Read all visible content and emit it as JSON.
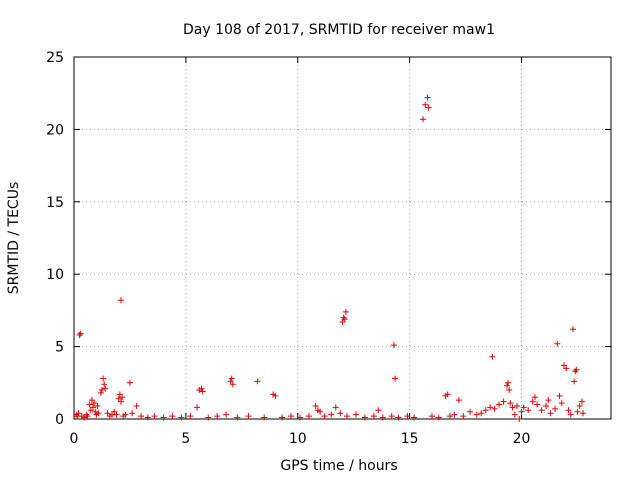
{
  "chart_data": {
    "type": "scatter",
    "title": "Day 108 of 2017, SRMTID for receiver maw1",
    "xlabel": "GPS time / hours",
    "ylabel": "SRMTID / TECUs",
    "xlim": [
      0,
      24
    ],
    "ylim": [
      0,
      25
    ],
    "xticks": [
      0,
      5,
      10,
      15,
      20
    ],
    "yticks": [
      0,
      5,
      10,
      15,
      20,
      25
    ],
    "grid": true,
    "marker": "+",
    "color": "#e00000",
    "series": [
      {
        "name": "SRMTID",
        "points": [
          [
            0.1,
            0.3
          ],
          [
            0.15,
            0.2
          ],
          [
            0.2,
            0.4
          ],
          [
            0.25,
            5.8
          ],
          [
            0.3,
            5.9
          ],
          [
            0.35,
            0.2
          ],
          [
            0.45,
            0.1
          ],
          [
            0.55,
            0.3
          ],
          [
            0.6,
            0.2
          ],
          [
            0.7,
            1.0
          ],
          [
            0.75,
            0.6
          ],
          [
            0.8,
            1.3
          ],
          [
            0.85,
            0.8
          ],
          [
            0.9,
            1.1
          ],
          [
            0.95,
            0.5
          ],
          [
            1.0,
            0.3
          ],
          [
            1.05,
            0.9
          ],
          [
            1.1,
            0.4
          ],
          [
            1.2,
            1.8
          ],
          [
            1.25,
            2.0
          ],
          [
            1.3,
            2.8
          ],
          [
            1.35,
            2.4
          ],
          [
            1.4,
            2.1
          ],
          [
            1.5,
            0.4
          ],
          [
            1.6,
            0.2
          ],
          [
            1.7,
            0.3
          ],
          [
            1.8,
            0.5
          ],
          [
            1.9,
            0.3
          ],
          [
            2.0,
            1.4
          ],
          [
            2.05,
            1.7
          ],
          [
            2.1,
            1.2
          ],
          [
            2.15,
            1.5
          ],
          [
            2.1,
            8.2
          ],
          [
            2.2,
            0.2
          ],
          [
            2.3,
            0.3
          ],
          [
            2.5,
            2.5
          ],
          [
            2.6,
            0.4
          ],
          [
            2.8,
            0.9
          ],
          [
            3.0,
            0.2
          ],
          [
            3.3,
            0.1
          ],
          [
            3.6,
            0.2
          ],
          [
            4.0,
            0.1
          ],
          [
            4.4,
            0.2
          ],
          [
            4.8,
            0.1
          ],
          [
            5.2,
            0.2
          ],
          [
            5.5,
            0.8
          ],
          [
            5.6,
            2.0
          ],
          [
            5.7,
            2.1
          ],
          [
            5.75,
            1.9
          ],
          [
            6.0,
            0.1
          ],
          [
            6.4,
            0.2
          ],
          [
            6.8,
            0.3
          ],
          [
            7.0,
            2.6
          ],
          [
            7.05,
            2.8
          ],
          [
            7.1,
            2.4
          ],
          [
            7.3,
            0.1
          ],
          [
            7.8,
            0.2
          ],
          [
            8.2,
            2.6
          ],
          [
            8.5,
            0.1
          ],
          [
            8.9,
            1.7
          ],
          [
            9.0,
            1.6
          ],
          [
            9.3,
            0.1
          ],
          [
            9.7,
            0.2
          ],
          [
            10.1,
            0.1
          ],
          [
            10.5,
            0.2
          ],
          [
            10.8,
            0.9
          ],
          [
            10.9,
            0.6
          ],
          [
            11.0,
            0.5
          ],
          [
            11.2,
            0.2
          ],
          [
            11.5,
            0.3
          ],
          [
            11.7,
            0.8
          ],
          [
            11.9,
            0.4
          ],
          [
            12.0,
            6.7
          ],
          [
            12.05,
            7.0
          ],
          [
            12.1,
            6.9
          ],
          [
            12.15,
            7.4
          ],
          [
            12.2,
            0.2
          ],
          [
            12.6,
            0.3
          ],
          [
            13.0,
            0.1
          ],
          [
            13.4,
            0.2
          ],
          [
            13.6,
            0.6
          ],
          [
            13.8,
            0.1
          ],
          [
            14.2,
            0.2
          ],
          [
            14.3,
            5.1
          ],
          [
            14.35,
            2.8
          ],
          [
            14.5,
            0.1
          ],
          [
            14.9,
            0.2
          ],
          [
            15.2,
            0.1
          ],
          [
            15.6,
            20.7
          ],
          [
            15.7,
            21.7
          ],
          [
            15.8,
            22.2
          ],
          [
            15.85,
            21.5
          ],
          [
            16.0,
            0.2
          ],
          [
            16.3,
            0.1
          ],
          [
            16.6,
            1.6
          ],
          [
            16.7,
            1.7
          ],
          [
            16.8,
            0.2
          ],
          [
            17.0,
            0.3
          ],
          [
            17.2,
            1.3
          ],
          [
            17.4,
            0.2
          ],
          [
            17.7,
            0.5
          ],
          [
            18.0,
            0.3
          ],
          [
            18.2,
            0.4
          ],
          [
            18.4,
            0.6
          ],
          [
            18.6,
            0.8
          ],
          [
            18.7,
            4.3
          ],
          [
            18.8,
            0.7
          ],
          [
            19.0,
            1.0
          ],
          [
            19.2,
            1.2
          ],
          [
            19.35,
            2.3
          ],
          [
            19.4,
            2.5
          ],
          [
            19.45,
            2.0
          ],
          [
            19.5,
            1.1
          ],
          [
            19.6,
            0.8
          ],
          [
            19.7,
            0.3
          ],
          [
            19.8,
            0.9
          ],
          [
            19.9,
            0.0
          ],
          [
            20.0,
            0.5
          ],
          [
            20.1,
            0.8
          ],
          [
            20.3,
            0.6
          ],
          [
            20.5,
            1.2
          ],
          [
            20.6,
            1.5
          ],
          [
            20.7,
            1.0
          ],
          [
            20.9,
            0.6
          ],
          [
            21.1,
            0.9
          ],
          [
            21.2,
            1.3
          ],
          [
            21.3,
            0.4
          ],
          [
            21.5,
            0.7
          ],
          [
            21.6,
            5.2
          ],
          [
            21.7,
            1.6
          ],
          [
            21.8,
            1.1
          ],
          [
            21.9,
            3.7
          ],
          [
            22.0,
            3.5
          ],
          [
            22.1,
            0.6
          ],
          [
            22.2,
            0.3
          ],
          [
            22.3,
            6.2
          ],
          [
            22.35,
            2.6
          ],
          [
            22.4,
            3.3
          ],
          [
            22.45,
            3.4
          ],
          [
            22.5,
            0.5
          ],
          [
            22.6,
            0.9
          ],
          [
            22.7,
            1.2
          ],
          [
            22.75,
            0.4
          ]
        ]
      }
    ]
  }
}
